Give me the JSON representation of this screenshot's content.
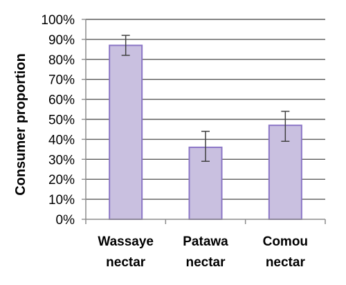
{
  "chart_data": {
    "type": "bar",
    "ylabel": "Consumer proportion",
    "xlabel": "",
    "categories": [
      [
        "Wassaye",
        "nectar"
      ],
      [
        "Patawa",
        "nectar"
      ],
      [
        "Comou",
        "nectar"
      ]
    ],
    "values": [
      87,
      36,
      47
    ],
    "error_low": [
      82,
      29,
      39
    ],
    "error_high": [
      92,
      44,
      54
    ],
    "ylim": [
      0,
      100
    ],
    "yticks": [
      0,
      10,
      20,
      30,
      40,
      50,
      60,
      70,
      80,
      90,
      100
    ],
    "ytick_labels": [
      "0%",
      "10%",
      "20%",
      "30%",
      "40%",
      "50%",
      "60%",
      "70%",
      "80%",
      "90%",
      "100%"
    ],
    "grid": true,
    "legend": "none",
    "colors": {
      "bar_fill": "#c9c0e0",
      "bar_stroke": "#8b76c6",
      "grid": "#595959",
      "axis": "#8c8c8c",
      "error_bar": "#404040"
    }
  }
}
